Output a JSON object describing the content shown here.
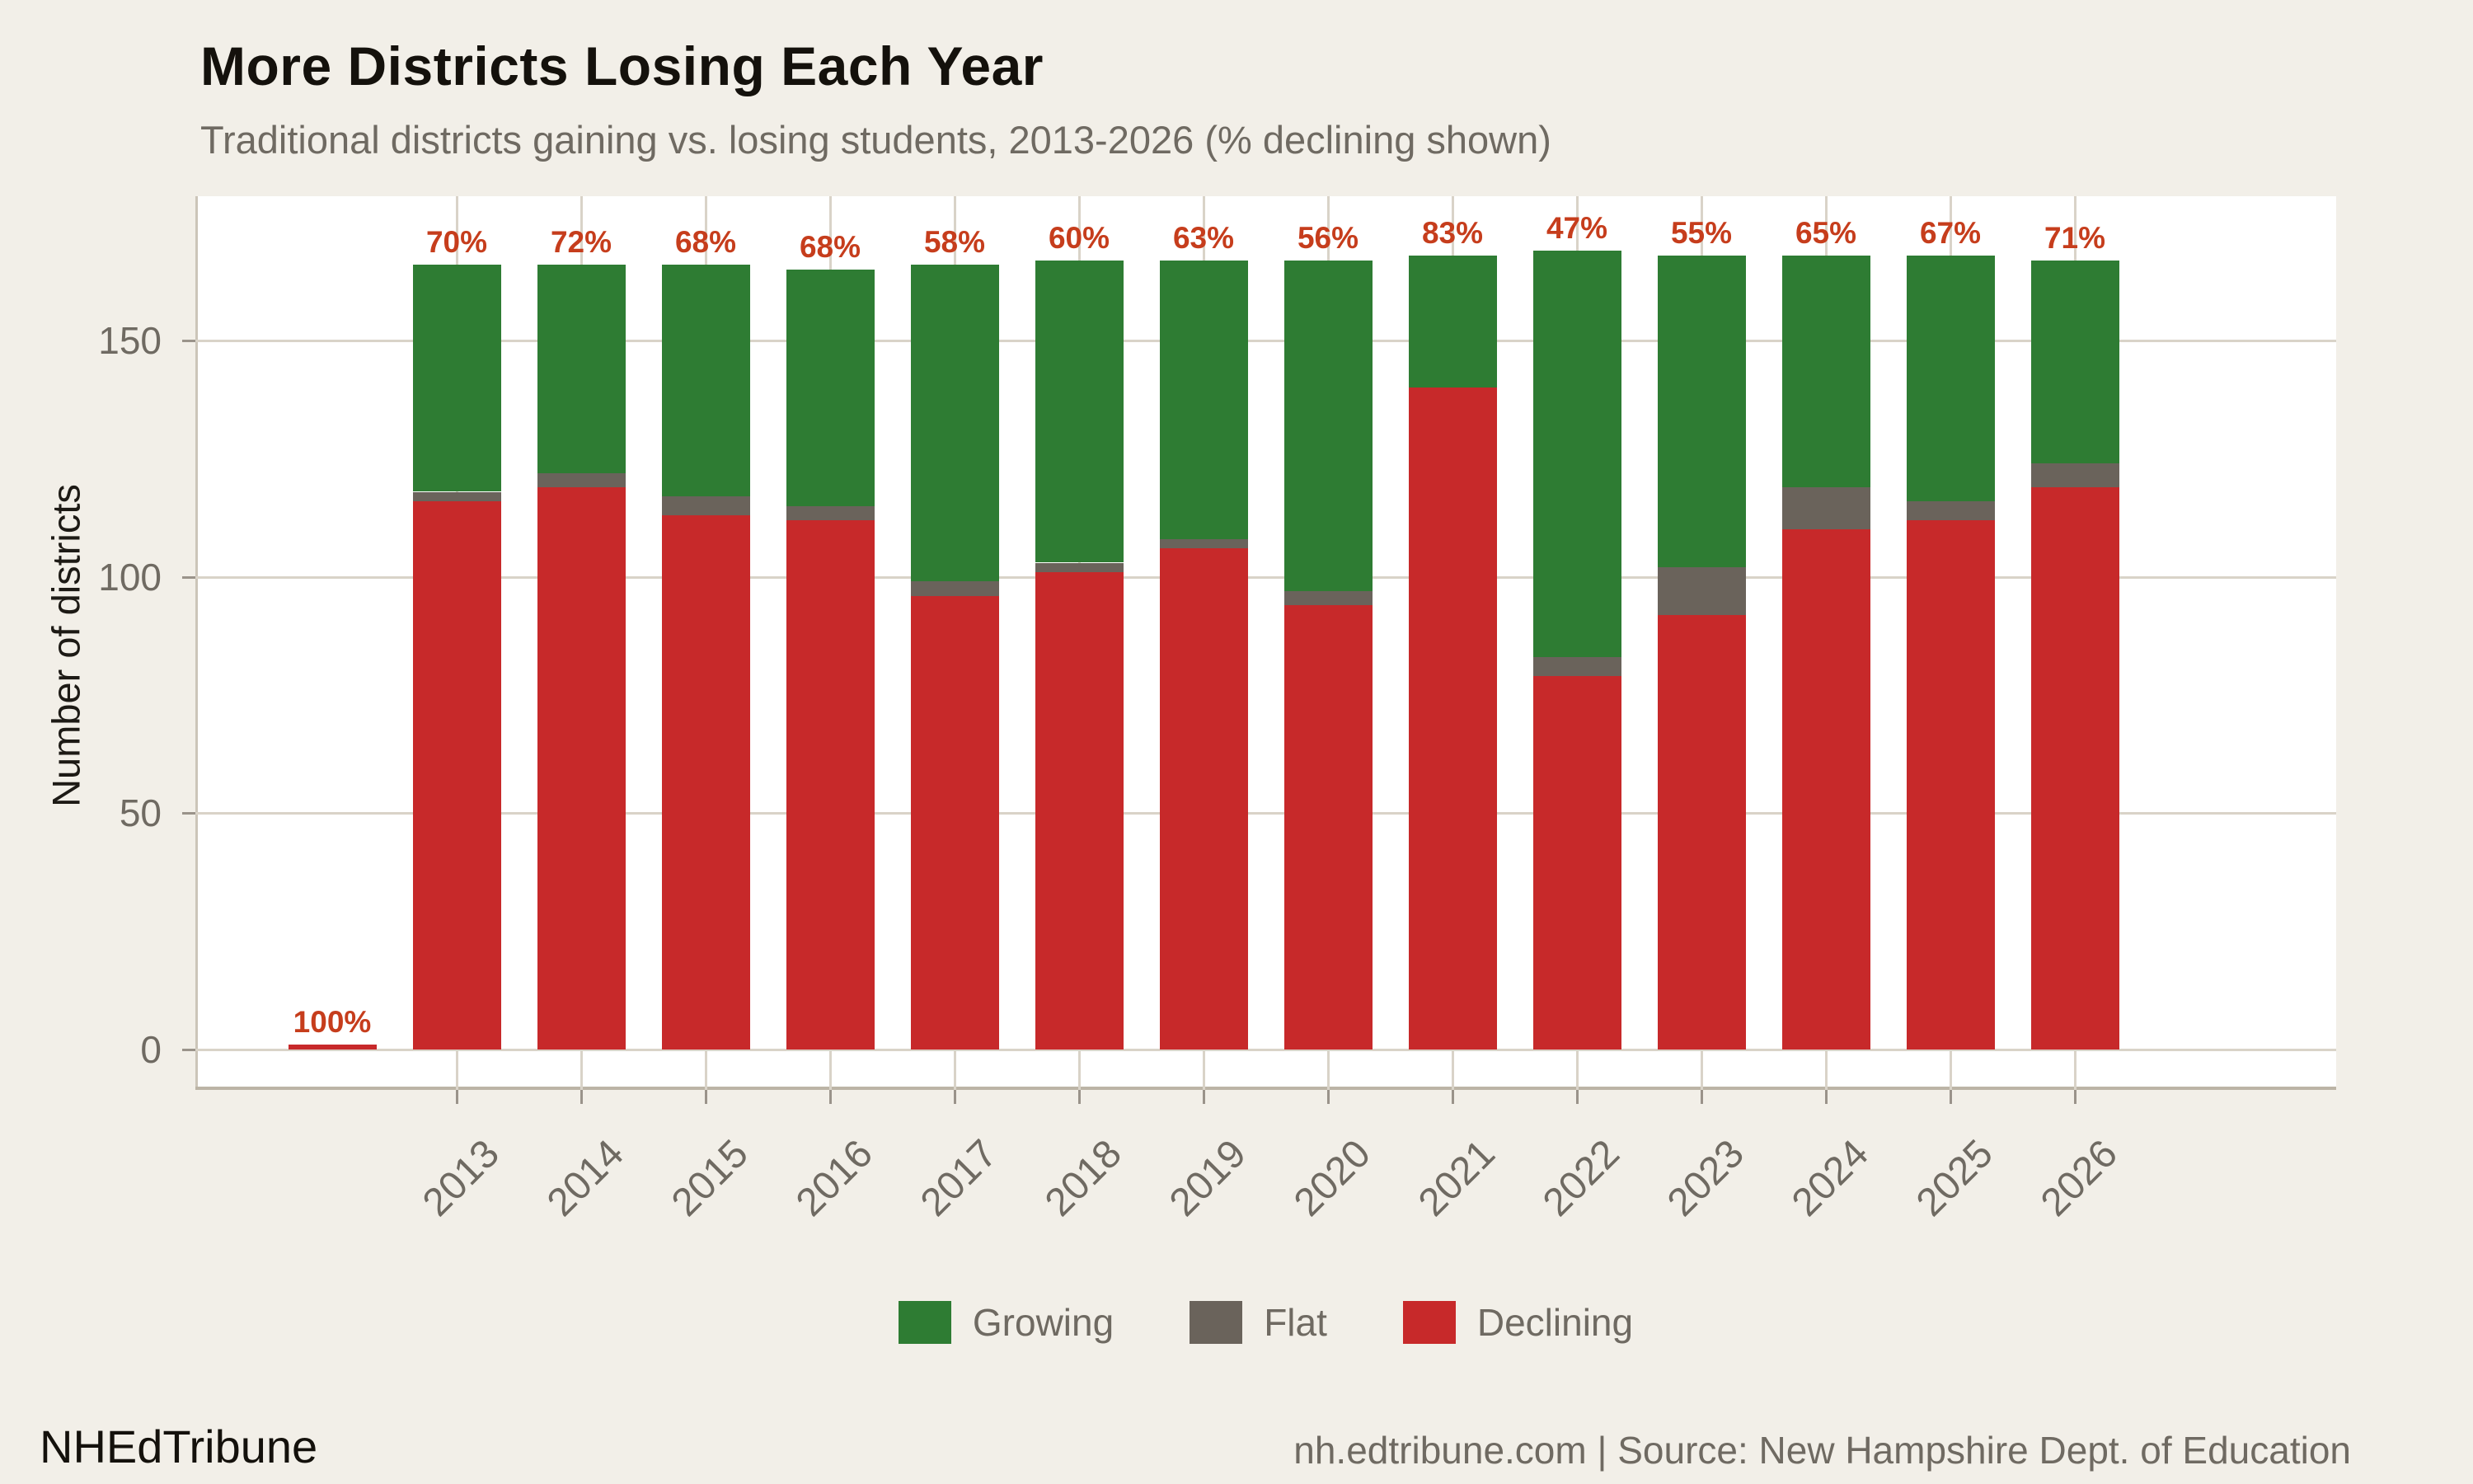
{
  "header": {
    "title": "More Districts Losing Each Year",
    "subtitle": "Traditional districts gaining vs. losing students, 2013-2026 (% declining shown)"
  },
  "chart_data": {
    "type": "bar",
    "stacked": true,
    "title": "More Districts Losing Each Year",
    "subtitle": "Traditional districts gaining vs. losing students, 2013-2026 (% declining shown)",
    "xlabel": "",
    "ylabel": "Number of districts",
    "yticks": [
      0,
      50,
      100,
      150
    ],
    "ylim": [
      0,
      180
    ],
    "grid": true,
    "legend_position": "bottom",
    "categories": [
      "",
      "2013",
      "2014",
      "2015",
      "2016",
      "2017",
      "2018",
      "2019",
      "2020",
      "2021",
      "2022",
      "2023",
      "2024",
      "2025",
      "2026"
    ],
    "series": [
      {
        "name": "Declining",
        "color": "#c7292a",
        "values": [
          1,
          116,
          119,
          113,
          112,
          96,
          101,
          106,
          94,
          140,
          79,
          92,
          110,
          112,
          119
        ]
      },
      {
        "name": "Flat",
        "color": "#6a635b",
        "values": [
          0,
          2,
          3,
          4,
          3,
          3,
          2,
          2,
          3,
          0,
          4,
          10,
          9,
          4,
          5
        ]
      },
      {
        "name": "Growing",
        "color": "#2e7c33",
        "values": [
          0,
          48,
          44,
          49,
          50,
          67,
          64,
          59,
          70,
          28,
          86,
          66,
          49,
          52,
          43
        ]
      }
    ],
    "bar_labels": [
      "100%",
      "70%",
      "72%",
      "68%",
      "68%",
      "58%",
      "60%",
      "63%",
      "56%",
      "83%",
      "47%",
      "55%",
      "65%",
      "67%",
      "71%"
    ],
    "bar_label_color": "#c63d1c",
    "legend": [
      {
        "label": "Growing",
        "color": "#2e7c33"
      },
      {
        "label": "Flat",
        "color": "#6a635b"
      },
      {
        "label": "Declining",
        "color": "#c7292a"
      }
    ]
  },
  "colors": {
    "background": "#f2efe8",
    "plot_background": "#ffffff",
    "gridline": "#d9d3c8",
    "axis_text": "#6f6a62",
    "percent_label": "#c63d1c"
  },
  "footer": {
    "brand": "NHEdTribune",
    "source": "nh.edtribune.com | Source: New Hampshire Dept. of Education"
  }
}
